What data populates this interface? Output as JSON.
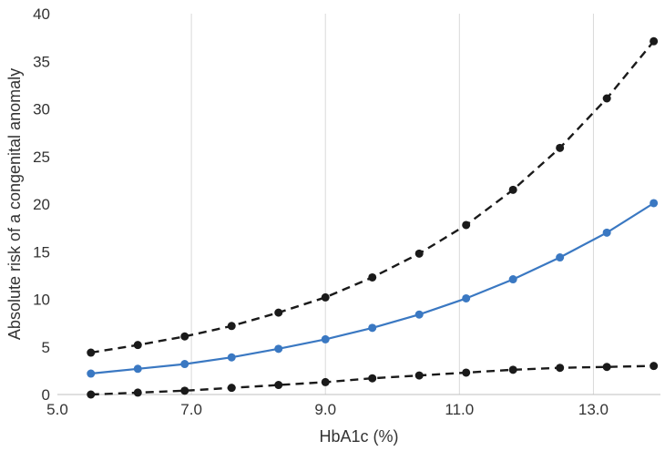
{
  "chart_data": {
    "type": "line",
    "xlabel": "HbA1c (%)",
    "ylabel": "Absolute risk of a congenital anomaly",
    "xlim": [
      5.0,
      14.0
    ],
    "ylim": [
      0,
      40
    ],
    "x_ticks": [
      "5.0",
      "7.0",
      "9.0",
      "11.0",
      "13.0"
    ],
    "x_tick_values": [
      5.0,
      7.0,
      9.0,
      11.0,
      13.0
    ],
    "y_ticks": [
      "0",
      "5",
      "10",
      "15",
      "20",
      "25",
      "30",
      "35",
      "40"
    ],
    "y_tick_values": [
      0,
      5,
      10,
      15,
      20,
      25,
      30,
      35,
      40
    ],
    "grid": "vertical",
    "legend": "none",
    "x": [
      5.5,
      6.2,
      6.9,
      7.6,
      8.3,
      9.0,
      9.7,
      10.4,
      11.1,
      11.8,
      12.5,
      13.2,
      13.9
    ],
    "series": [
      {
        "values": [
          4.4,
          5.2,
          6.1,
          7.2,
          8.6,
          10.2,
          12.3,
          14.8,
          17.8,
          21.5,
          25.9,
          31.1,
          37.1
        ],
        "color": "#1a1a1a",
        "style": "dashed"
      },
      {
        "values": [
          2.2,
          2.7,
          3.2,
          3.9,
          4.8,
          5.8,
          7.0,
          8.4,
          10.1,
          12.1,
          14.4,
          17.0,
          20.1
        ],
        "color": "#3a78c2",
        "style": "solid"
      },
      {
        "values": [
          0.0,
          0.2,
          0.4,
          0.7,
          1.0,
          1.3,
          1.7,
          2.0,
          2.3,
          2.6,
          2.8,
          2.9,
          3.0
        ],
        "color": "#1a1a1a",
        "style": "dashed"
      }
    ]
  }
}
